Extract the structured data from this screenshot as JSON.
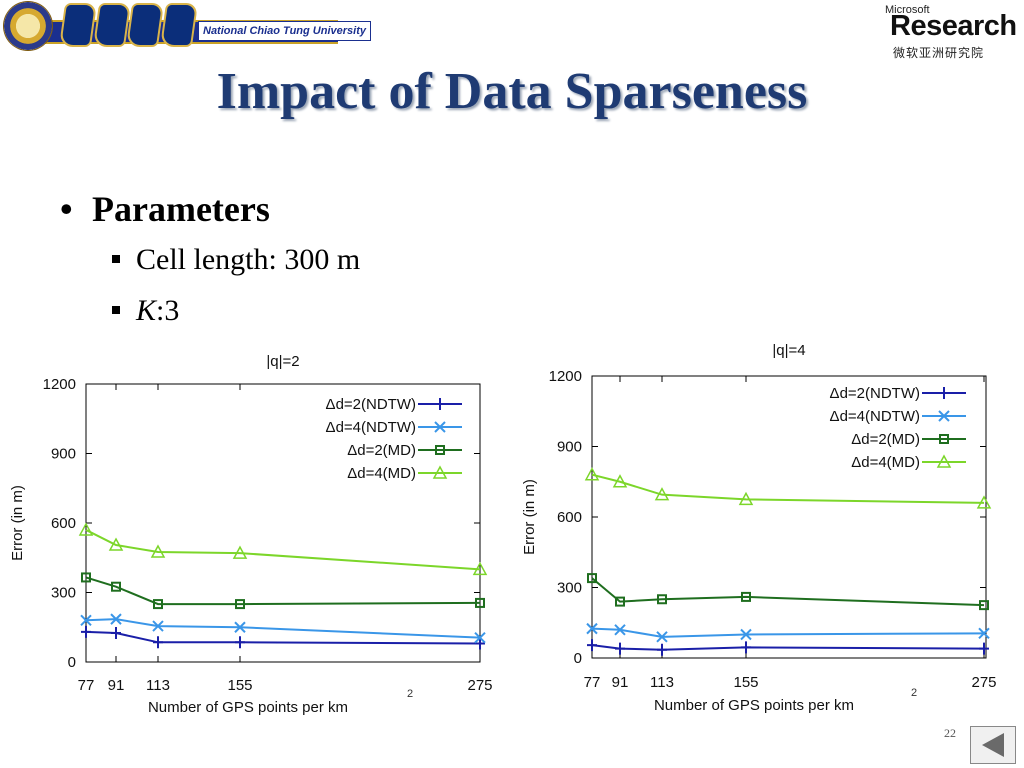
{
  "header": {
    "nctu_name": "National Chiao Tung University",
    "msr_top": "Microsoft",
    "msr_main": "Research",
    "msr_chinese": "微软亚洲研究院"
  },
  "title": "Impact of Data Sparseness",
  "bullets": {
    "main": "Parameters",
    "sub1": "Cell length: 300 m",
    "sub2_italic": "K",
    "sub2_rest": ":3"
  },
  "footer": {
    "slide_number": "22"
  },
  "colors": {
    "title": "#1f3b73",
    "ndtw2": "#1a1fa8",
    "ndtw4": "#3a96e8",
    "md2": "#1f6e1f",
    "md4": "#7cd62a"
  },
  "chart_data": [
    {
      "type": "line",
      "title": "|q|=2",
      "xlabel": "Number of GPS points per km",
      "xlabel_suffix": "2",
      "ylabel": "Error (in m)",
      "x": [
        77,
        91,
        113,
        155,
        275
      ],
      "xlim": [
        77,
        275
      ],
      "ylim": [
        0,
        1200
      ],
      "yticks": [
        0,
        300,
        600,
        900,
        1200
      ],
      "legend": "top-right",
      "series": [
        {
          "name": "Δd=2(NDTW)",
          "color": "#1a1fa8",
          "marker": "plus",
          "values": [
            130,
            125,
            85,
            85,
            80
          ]
        },
        {
          "name": "Δd=4(NDTW)",
          "color": "#3a96e8",
          "marker": "cross",
          "values": [
            180,
            185,
            155,
            150,
            105
          ]
        },
        {
          "name": "Δd=2(MD)",
          "color": "#1f6e1f",
          "marker": "square",
          "values": [
            365,
            325,
            250,
            250,
            255
          ]
        },
        {
          "name": "Δd=4(MD)",
          "color": "#7cd62a",
          "marker": "triangle",
          "values": [
            570,
            505,
            475,
            470,
            400
          ]
        }
      ]
    },
    {
      "type": "line",
      "title": "|q|=4",
      "xlabel": "Number of GPS points per km",
      "xlabel_suffix": "2",
      "ylabel": "Error (in m)",
      "x": [
        77,
        91,
        113,
        155,
        275
      ],
      "xlim": [
        77,
        275
      ],
      "ylim": [
        0,
        1200
      ],
      "yticks": [
        0,
        300,
        600,
        900,
        1200
      ],
      "legend": "top-right",
      "series": [
        {
          "name": "Δd=2(NDTW)",
          "color": "#1a1fa8",
          "marker": "plus",
          "values": [
            55,
            40,
            35,
            45,
            40
          ]
        },
        {
          "name": "Δd=4(NDTW)",
          "color": "#3a96e8",
          "marker": "cross",
          "values": [
            125,
            120,
            90,
            100,
            105
          ]
        },
        {
          "name": "Δd=2(MD)",
          "color": "#1f6e1f",
          "marker": "square",
          "values": [
            340,
            240,
            250,
            260,
            225
          ]
        },
        {
          "name": "Δd=4(MD)",
          "color": "#7cd62a",
          "marker": "triangle",
          "values": [
            780,
            750,
            695,
            675,
            660
          ]
        }
      ]
    }
  ]
}
